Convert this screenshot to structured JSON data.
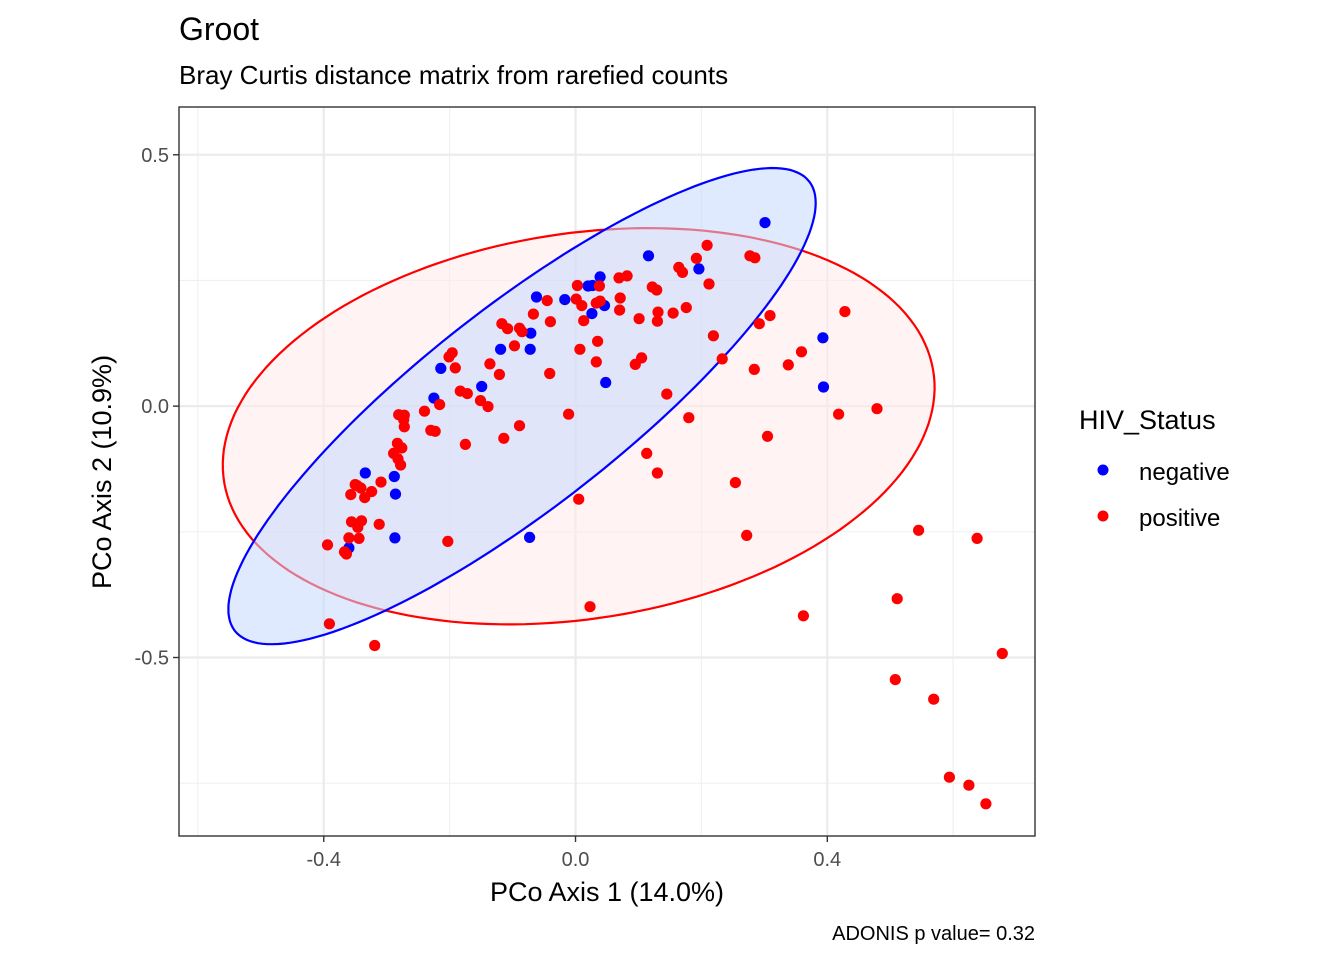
{
  "title": "Groot",
  "subtitle": "Bray Curtis distance matrix from rarefied counts",
  "caption": "ADONIS p value= 0.32",
  "legend": {
    "title": "HIV_Status",
    "items": [
      {
        "label": "negative",
        "color": "#0000ff"
      },
      {
        "label": "positive",
        "color": "#ff0000"
      }
    ]
  },
  "chart_data": {
    "type": "scatter",
    "xlabel": "PCo Axis 1 (14.0%)",
    "ylabel": "PCo Axis 2 (10.9%)",
    "xlim": [
      -0.63,
      0.73
    ],
    "ylim": [
      -0.855,
      0.595
    ],
    "x_ticks": [
      -0.4,
      0.0,
      0.4
    ],
    "x_tick_labels": [
      "-0.4",
      "0.0",
      "0.4"
    ],
    "y_ticks": [
      -0.5,
      0.0,
      0.5
    ],
    "y_tick_labels": [
      "-0.5",
      "0.0",
      "0.5"
    ],
    "grid": true,
    "legend_position": "right",
    "series": [
      {
        "name": "negative",
        "color": "#0000ff",
        "points": [
          [
            0.301,
            0.365
          ],
          [
            0.116,
            0.299
          ],
          [
            0.196,
            0.273
          ],
          [
            0.039,
            0.257
          ],
          [
            0.027,
            0.24
          ],
          [
            0.02,
            0.239
          ],
          [
            -0.062,
            0.217
          ],
          [
            -0.017,
            0.212
          ],
          [
            0.046,
            0.2
          ],
          [
            0.026,
            0.184
          ],
          [
            -0.071,
            0.145
          ],
          [
            -0.119,
            0.113
          ],
          [
            -0.072,
            0.113
          ],
          [
            -0.214,
            0.075
          ],
          [
            0.048,
            0.047
          ],
          [
            -0.149,
            0.039
          ],
          [
            -0.225,
            0.016
          ],
          [
            0.393,
            0.136
          ],
          [
            0.394,
            0.038
          ],
          [
            -0.334,
            -0.133
          ],
          [
            -0.288,
            -0.14
          ],
          [
            -0.286,
            -0.175
          ],
          [
            -0.287,
            -0.262
          ],
          [
            -0.073,
            -0.261
          ],
          [
            -0.36,
            -0.282
          ]
        ]
      },
      {
        "name": "positive",
        "color": "#ff0000",
        "points": [
          [
            0.209,
            0.32
          ],
          [
            0.277,
            0.299
          ],
          [
            0.285,
            0.295
          ],
          [
            0.192,
            0.294
          ],
          [
            0.164,
            0.276
          ],
          [
            0.082,
            0.259
          ],
          [
            0.069,
            0.255
          ],
          [
            0.17,
            0.266
          ],
          [
            0.212,
            0.243
          ],
          [
            0.122,
            0.237
          ],
          [
            0.129,
            0.231
          ],
          [
            0.038,
            0.239
          ],
          [
            0.003,
            0.24
          ],
          [
            -0.045,
            0.21
          ],
          [
            0.001,
            0.213
          ],
          [
            0.039,
            0.209
          ],
          [
            0.071,
            0.215
          ],
          [
            0.033,
            0.205
          ],
          [
            0.176,
            0.196
          ],
          [
            0.01,
            0.2
          ],
          [
            0.155,
            0.185
          ],
          [
            0.07,
            0.191
          ],
          [
            0.131,
            0.187
          ],
          [
            0.309,
            0.18
          ],
          [
            0.428,
            0.188
          ],
          [
            -0.067,
            0.183
          ],
          [
            0.292,
            0.164
          ],
          [
            -0.04,
            0.168
          ],
          [
            0.101,
            0.174
          ],
          [
            0.13,
            0.169
          ],
          [
            -0.117,
            0.164
          ],
          [
            -0.108,
            0.154
          ],
          [
            -0.089,
            0.155
          ],
          [
            0.219,
            0.14
          ],
          [
            -0.085,
            0.148
          ],
          [
            0.013,
            0.17
          ],
          [
            0.035,
            0.129
          ],
          [
            -0.097,
            0.12
          ],
          [
            0.007,
            0.113
          ],
          [
            -0.196,
            0.106
          ],
          [
            -0.201,
            0.098
          ],
          [
            0.105,
            0.096
          ],
          [
            0.359,
            0.108
          ],
          [
            0.233,
            0.094
          ],
          [
            0.033,
            0.088
          ],
          [
            -0.136,
            0.084
          ],
          [
            0.095,
            0.083
          ],
          [
            -0.191,
            0.076
          ],
          [
            0.338,
            0.082
          ],
          [
            0.284,
            0.073
          ],
          [
            -0.041,
            0.065
          ],
          [
            -0.121,
            0.063
          ],
          [
            0.145,
            0.024
          ],
          [
            -0.183,
            0.03
          ],
          [
            -0.172,
            0.025
          ],
          [
            -0.151,
            0.011
          ],
          [
            -0.139,
            -0.001
          ],
          [
            -0.216,
            0.003
          ],
          [
            -0.24,
            -0.01
          ],
          [
            -0.272,
            -0.018
          ],
          [
            -0.281,
            -0.017
          ],
          [
            -0.011,
            -0.016
          ],
          [
            0.18,
            -0.023
          ],
          [
            0.418,
            -0.016
          ],
          [
            0.479,
            -0.005
          ],
          [
            -0.273,
            -0.027
          ],
          [
            -0.272,
            -0.041
          ],
          [
            -0.089,
            -0.039
          ],
          [
            -0.23,
            -0.048
          ],
          [
            -0.223,
            -0.05
          ],
          [
            0.305,
            -0.06
          ],
          [
            -0.283,
            -0.074
          ],
          [
            -0.276,
            -0.083
          ],
          [
            -0.114,
            -0.064
          ],
          [
            -0.175,
            -0.076
          ],
          [
            0.113,
            -0.094
          ],
          [
            0.13,
            -0.133
          ],
          [
            -0.289,
            -0.094
          ],
          [
            -0.282,
            -0.105
          ],
          [
            -0.278,
            -0.117
          ],
          [
            -0.309,
            -0.151
          ],
          [
            -0.347,
            -0.158
          ],
          [
            -0.35,
            -0.156
          ],
          [
            0.254,
            -0.152
          ],
          [
            -0.341,
            -0.163
          ],
          [
            -0.324,
            -0.17
          ],
          [
            -0.357,
            -0.176
          ],
          [
            -0.335,
            -0.182
          ],
          [
            0.005,
            -0.185
          ],
          [
            -0.312,
            -0.235
          ],
          [
            -0.34,
            -0.228
          ],
          [
            -0.356,
            -0.23
          ],
          [
            -0.346,
            -0.241
          ],
          [
            -0.203,
            -0.269
          ],
          [
            -0.36,
            -0.262
          ],
          [
            0.272,
            -0.257
          ],
          [
            -0.344,
            -0.263
          ],
          [
            -0.394,
            -0.276
          ],
          [
            -0.367,
            -0.29
          ],
          [
            -0.364,
            -0.294
          ],
          [
            0.545,
            -0.247
          ],
          [
            0.638,
            -0.263
          ],
          [
            0.511,
            -0.383
          ],
          [
            0.023,
            -0.399
          ],
          [
            0.362,
            -0.417
          ],
          [
            -0.391,
            -0.433
          ],
          [
            -0.319,
            -0.476
          ],
          [
            0.678,
            -0.492
          ],
          [
            0.508,
            -0.544
          ],
          [
            0.569,
            -0.583
          ],
          [
            0.594,
            -0.738
          ],
          [
            0.625,
            -0.754
          ],
          [
            0.652,
            -0.791
          ]
        ]
      }
    ],
    "ellipses": [
      {
        "series": "positive",
        "color": "#ff0000",
        "fill": "#ffeaea",
        "center": [
          0.005,
          -0.04
        ],
        "semi_axes": [
          0.575,
          0.38
        ],
        "angle_deg": 14
      },
      {
        "series": "negative",
        "color": "#0000ff",
        "fill": "#c7d9ff",
        "center": [
          -0.085,
          0.0
        ],
        "semi_axes": [
          0.64,
          0.18
        ],
        "angle_deg": 45.5
      }
    ]
  }
}
